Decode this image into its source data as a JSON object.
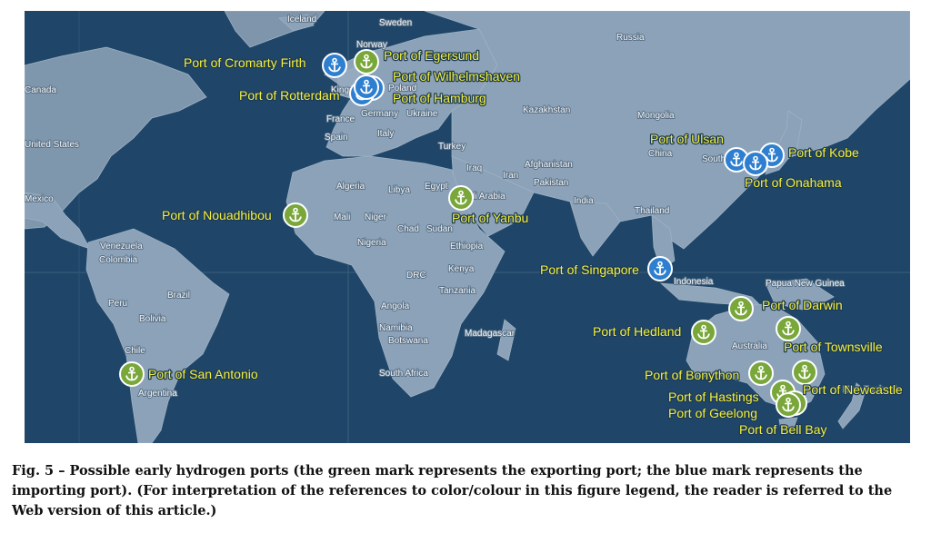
{
  "colors": {
    "ocean": "#1f4668",
    "land": "#8ca2b8",
    "export_port": "#79a73a",
    "import_port": "#2f7fd0",
    "label_text": "#f3ef3b"
  },
  "icon": "anchor-icon",
  "country_labels": [
    "Iceland",
    "Sweden",
    "Norway",
    "Russia",
    "Canada",
    "United States",
    "Mexico",
    "Kingdom",
    "Poland",
    "Germany",
    "Ukraine",
    "France",
    "Spain",
    "Italy",
    "Turkey",
    "Kazakhstan",
    "Mongolia",
    "China",
    "Afghanistan",
    "Iran",
    "Iraq",
    "Pakistan",
    "India",
    "Thailand",
    "Algeria",
    "Libya",
    "Egypt",
    "Saudi Arabia",
    "Mali",
    "Niger",
    "Chad",
    "Sudan",
    "Nigeria",
    "Ethiopia",
    "DRC",
    "Kenya",
    "Tanzania",
    "Angola",
    "Namibia",
    "Botswana",
    "Madagascar",
    "South Africa",
    "Venezuela",
    "Colombia",
    "Peru",
    "Brazil",
    "Bolivia",
    "Chile",
    "Argentina",
    "South",
    "Indonesia",
    "Papua New Guinea",
    "Australia",
    "New Zealand"
  ],
  "ports": [
    {
      "name": "Port of Cromarty Firth",
      "type": "import"
    },
    {
      "name": "Port of Egersund",
      "type": "export"
    },
    {
      "name": "Port of Wilhelmshaven",
      "type": "import"
    },
    {
      "name": "Port of Rotterdam",
      "type": "import"
    },
    {
      "name": "Port of Hamburg",
      "type": "import"
    },
    {
      "name": "Port of Nouadhibou",
      "type": "export"
    },
    {
      "name": "Port of Yanbu",
      "type": "export"
    },
    {
      "name": "Port of Ulsan",
      "type": "import"
    },
    {
      "name": "Port of Kobe",
      "type": "import"
    },
    {
      "name": "Port of Onahama",
      "type": "import"
    },
    {
      "name": "Port of Singapore",
      "type": "import"
    },
    {
      "name": "Port of Darwin",
      "type": "export"
    },
    {
      "name": "Port of Hedland",
      "type": "export"
    },
    {
      "name": "Port of Townsville",
      "type": "export"
    },
    {
      "name": "Port of Bonython",
      "type": "export"
    },
    {
      "name": "Port of Newcastle",
      "type": "export"
    },
    {
      "name": "Port of Hastings",
      "type": "export"
    },
    {
      "name": "Port of Geelong",
      "type": "export"
    },
    {
      "name": "Port of Bell Bay",
      "type": "export"
    },
    {
      "name": "Port of San Antonio",
      "type": "export"
    }
  ],
  "caption": {
    "figure_number": "Fig. 5",
    "text": "Possible early hydrogen ports (the green mark represents the exporting port; the blue mark represents the importing port). (For interpretation of the references to color/colour in this figure legend, the reader is referred to the Web version of this article.)"
  }
}
